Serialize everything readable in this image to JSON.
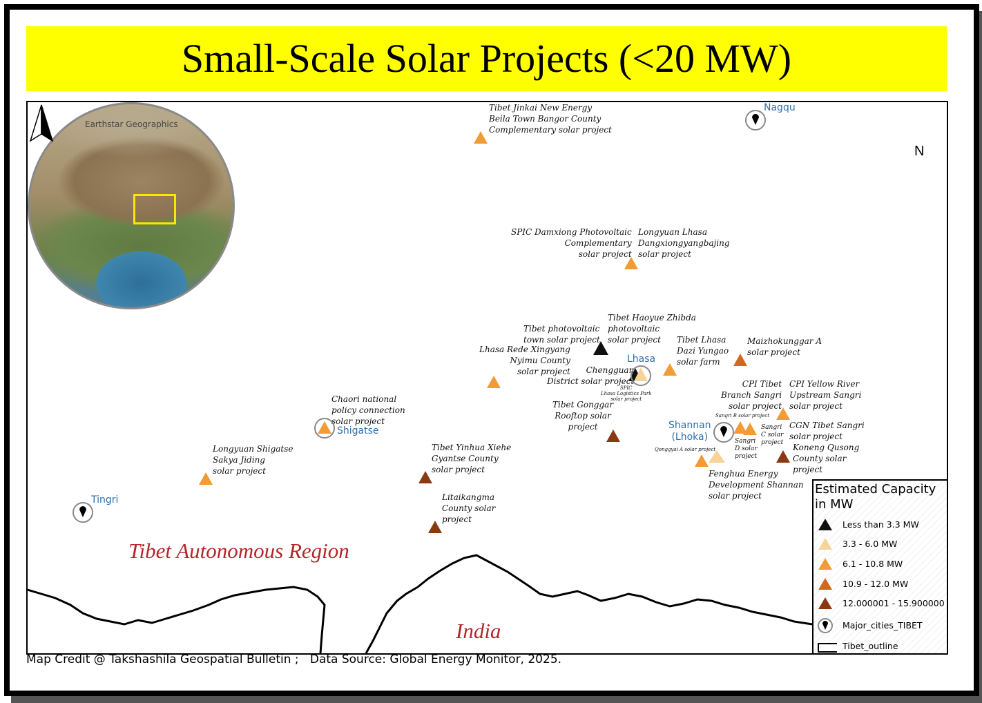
{
  "title": "Small-Scale Solar Projects (<20 MW)",
  "colors": {
    "title_bg": "#ffff00",
    "less_3_3": "#111111",
    "c3_3_6": "#f6d49a",
    "c6_1_10_8": "#f39b34",
    "c10_9_12": "#d1681e",
    "c12_15_9": "#8a3a12",
    "city_text": "#2f6fa8",
    "region_text": "#b3262a"
  },
  "inset": {
    "credit": "Earthstar Geographics"
  },
  "north_label": "N",
  "region_label": "Tibet Autonomous Region",
  "country_label": "India",
  "cities": [
    {
      "name": "Nagqu"
    },
    {
      "name": "Lhasa"
    },
    {
      "name": "Shigatse"
    },
    {
      "name": "Shannan\n(Lhoka)"
    },
    {
      "name": "Tingri"
    }
  ],
  "projects": [
    {
      "label": "Tibet Jinkai New Energy\nBeila Town Bangor County\nComplementary solar project",
      "class": "6.1 - 10.8 MW"
    },
    {
      "label": "SPIC Damxiong Photovoltaic\nComplementary\nsolar project",
      "class": "6.1 - 10.8 MW"
    },
    {
      "label": "Longyuan Lhasa\nDangxiongyangbajing\nsolar project",
      "class": "6.1 - 10.8 MW"
    },
    {
      "label": "Tibet photovoltaic\ntown solar project",
      "class": "Less than 3.3 MW"
    },
    {
      "label": "Tibet Haoyue Zhibda\nphotovoltaic\nsolar project",
      "class": "Less than 3.3 MW"
    },
    {
      "label": "Lhasa Rede Xingyang\nNyimu County\nsolar project",
      "class": "6.1 - 10.8 MW"
    },
    {
      "label": "Chengguan\nDistrict solar project",
      "class": "Less than 3.3 MW"
    },
    {
      "label": "SPIC\nLhasa Logistics Park\nsolar project",
      "class": "3.3 - 6.0 MW"
    },
    {
      "label": "Tibet Lhasa\nDazi Yungao\nsolar farm",
      "class": "6.1 - 10.8 MW"
    },
    {
      "label": "Maizhokunggar A\nsolar project",
      "class": "10.9 - 12.0 MW"
    },
    {
      "label": "Chaori national\npolicy connection\nsolar project",
      "class": "6.1 - 10.8 MW"
    },
    {
      "label": "Tibet Gonggar\nRooftop solar\nproject",
      "class": "12.000001 - 15.900000"
    },
    {
      "label": "CPI Tibet\nBranch Sangri\nsolar project",
      "class": "6.1 - 10.8 MW"
    },
    {
      "label": "CPI Yellow River\nUpstream Sangri\nsolar project",
      "class": "6.1 - 10.8 MW"
    },
    {
      "label": "Sangri B solar project",
      "class": "6.1 - 10.8 MW"
    },
    {
      "label": "Sangri\nC solar\nproject",
      "class": "6.1 - 10.8 MW"
    },
    {
      "label": "Sangri\nD solar\nproject",
      "class": "6.1 - 10.8 MW"
    },
    {
      "label": "CGN Tibet Sangri\nsolar project",
      "class": "6.1 - 10.8 MW"
    },
    {
      "label": "Koneng Qusong\nCounty solar\nproject",
      "class": "12.000001 - 15.900000"
    },
    {
      "label": "Qonggyai A solar project",
      "class": "3.3 - 6.0 MW"
    },
    {
      "label": "Fenghua Energy\nDevelopment Shannan\nsolar project",
      "class": "6.1 - 10.8 MW"
    },
    {
      "label": "Longyuan Shigatse\nSakya Jiding\nsolar project",
      "class": "6.1 - 10.8 MW"
    },
    {
      "label": "Tibet Yinhua Xiehe\nGyantse County\nsolar project",
      "class": "12.000001 - 15.900000"
    },
    {
      "label": "Litaikangma\nCounty solar\nproject",
      "class": "12.000001 - 15.900000"
    }
  ],
  "legend": {
    "title": "Estimated Capacity in MW",
    "items": [
      {
        "label": "Less than 3.3 MW",
        "color": "#111111",
        "icon": "triangle"
      },
      {
        "label": " 3.3 - 6.0 MW",
        "color": "#f6d49a",
        "icon": "triangle"
      },
      {
        "label": "6.1 - 10.8 MW",
        "color": "#f39b34",
        "icon": "triangle"
      },
      {
        "label": "10.9 - 12.0 MW",
        "color": "#d1681e",
        "icon": "triangle"
      },
      {
        "label": "12.000001 - 15.900000",
        "color": "#8a3a12",
        "icon": "triangle"
      },
      {
        "label": "Major_cities_TIBET",
        "color": "#000000",
        "icon": "city-marker"
      },
      {
        "label": "Tibet_outline",
        "color": "#000000",
        "icon": "rectangle"
      }
    ]
  },
  "credit": "Map Credit @ Takshashila Geospatial Bulletin ;   Data Source: Global Energy Monitor, 2025."
}
